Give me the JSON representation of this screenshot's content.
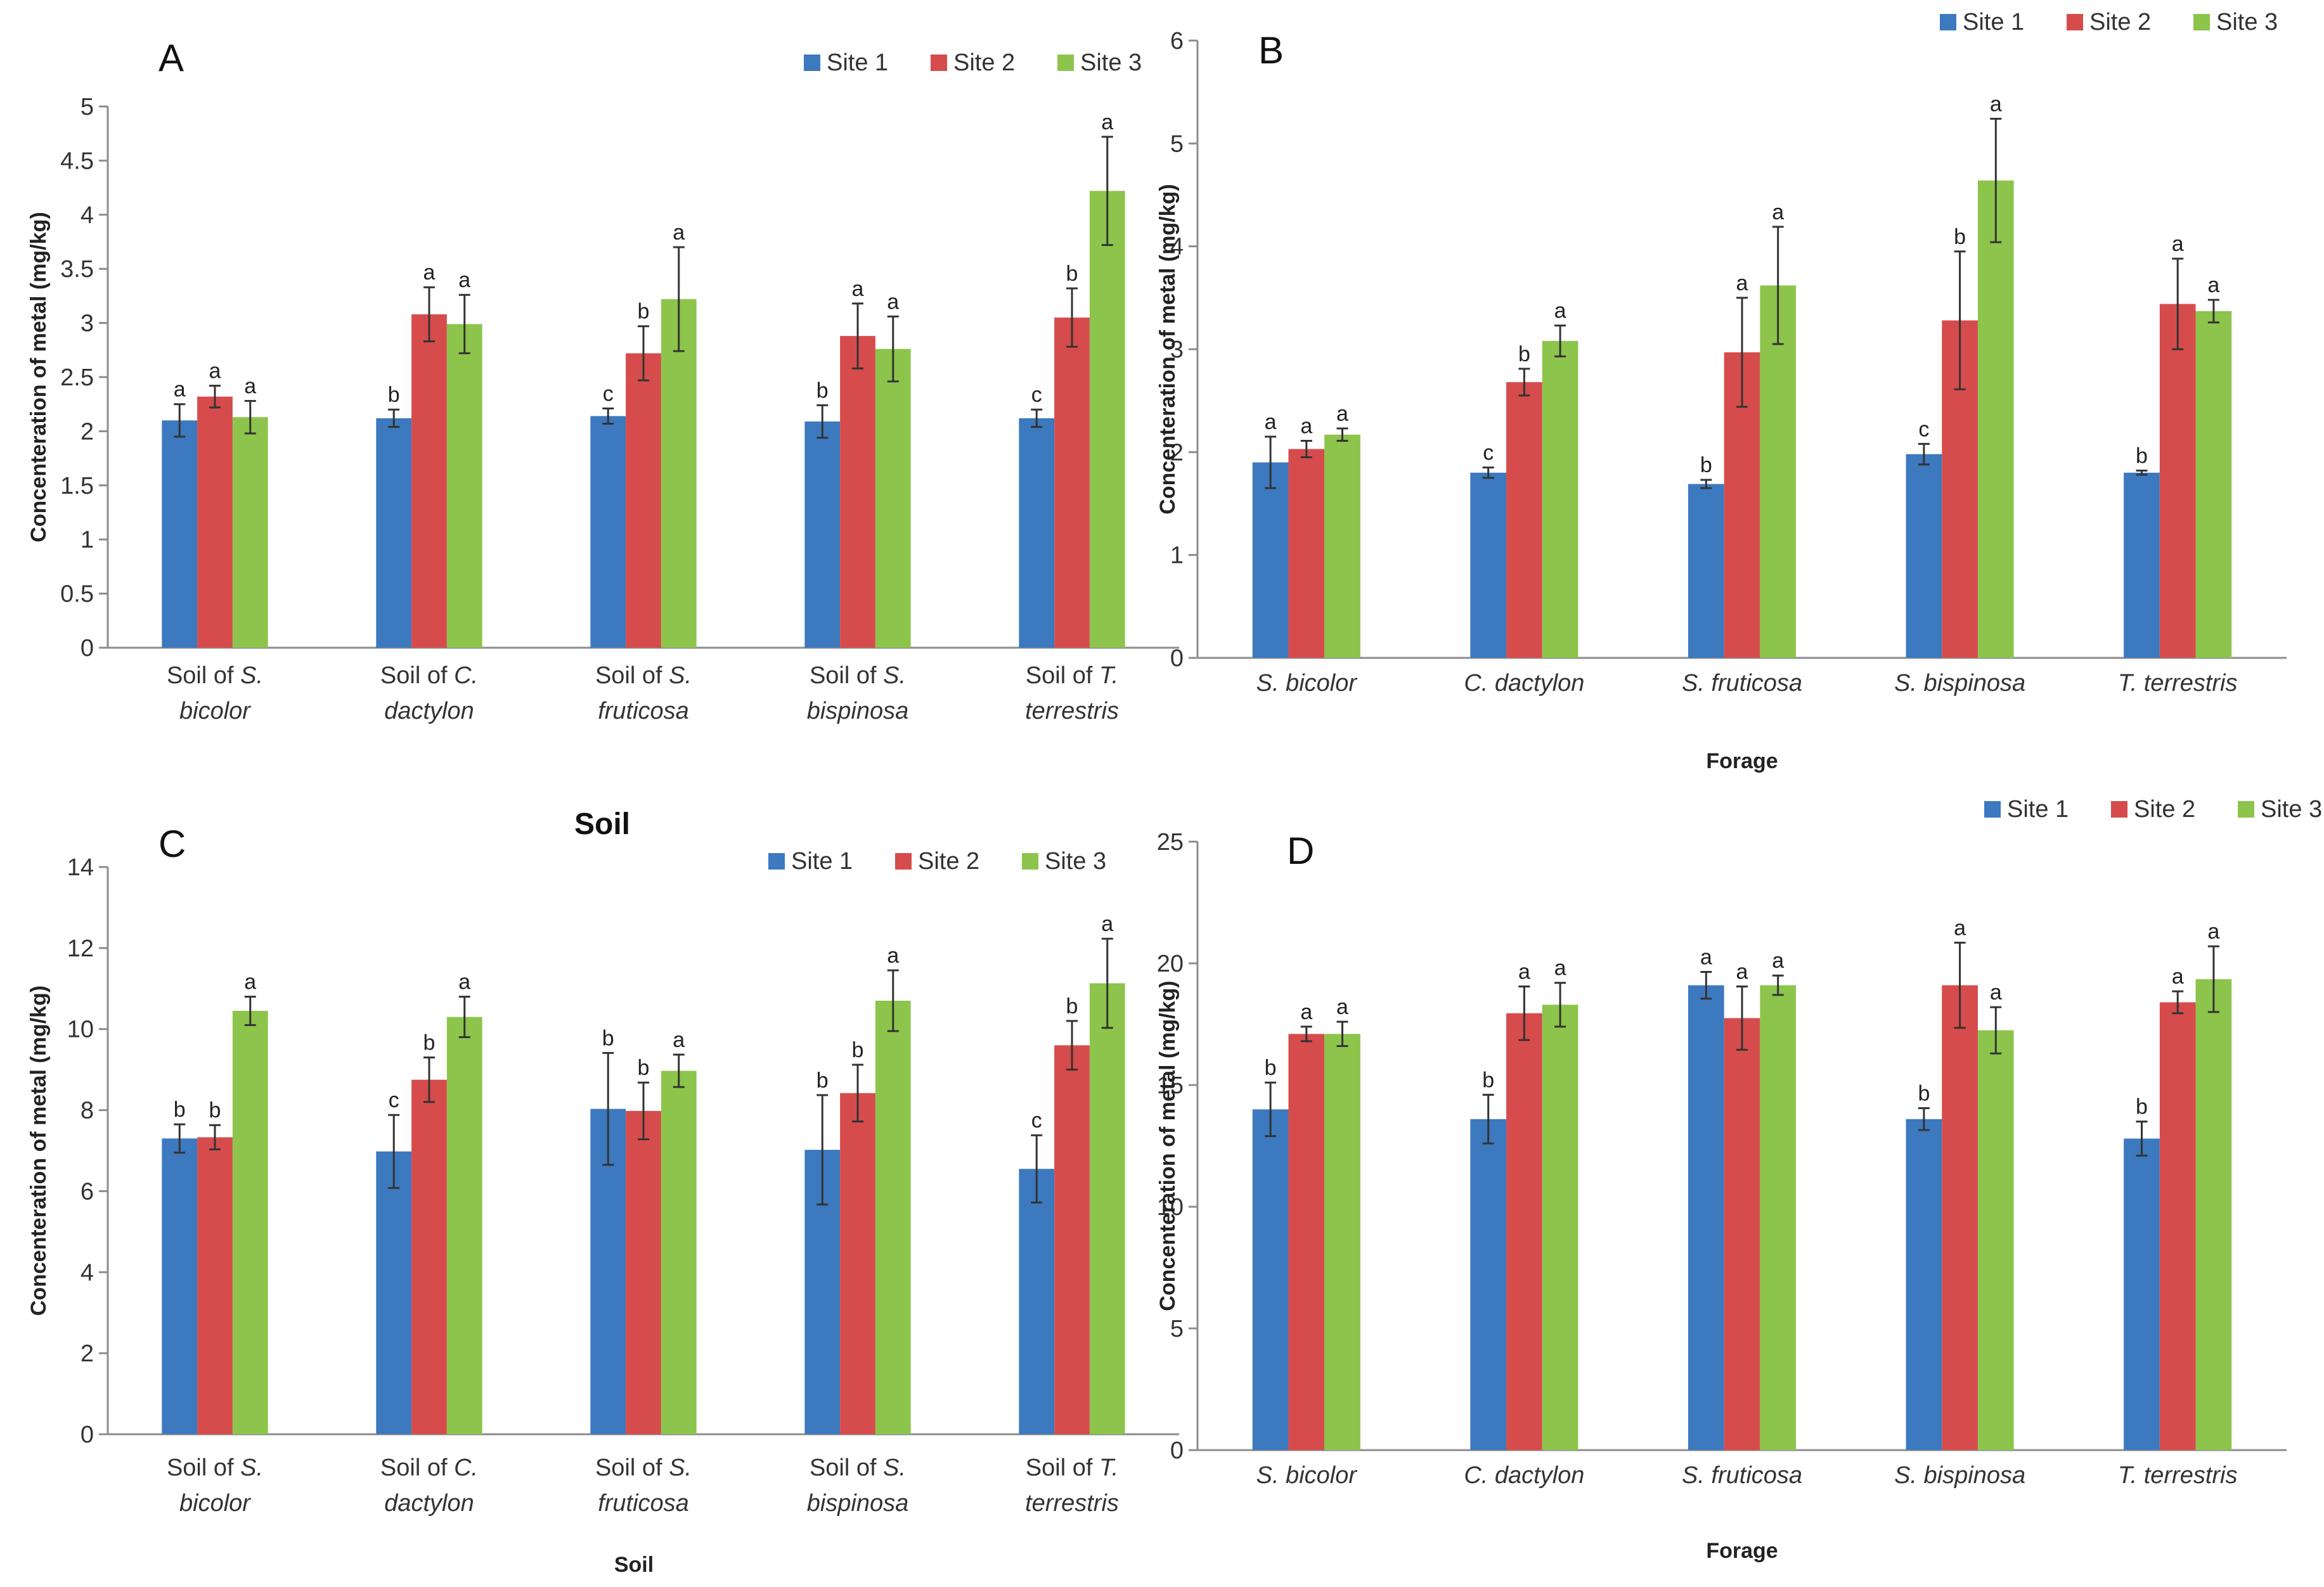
{
  "figure": "Concentration of metal in soil and forage at three sites",
  "colors": {
    "Site 1": "#3C79BE",
    "Site 2": "#D64C4C",
    "Site 3": "#8DC44B",
    "axis": "#8c8c8c",
    "error": "#333333"
  },
  "chart_data": [
    {
      "panel": "A",
      "type": "bar",
      "title": "",
      "ylabel": "Concenteration of metal (mg/kg)",
      "xlabel": "",
      "ylim": [
        0,
        5
      ],
      "yticks": [
        "0",
        "0.5",
        "1",
        "1.5",
        "2",
        "2.5",
        "3",
        "3.5",
        "4",
        "4.5",
        "5"
      ],
      "categories": [
        [
          "Soil of ",
          "S.",
          "bicolor"
        ],
        [
          "Soil of ",
          "C.",
          "dactylon"
        ],
        [
          "Soil of ",
          "S.",
          "fruticosa"
        ],
        [
          "Soil of ",
          "S.",
          "bispinosa"
        ],
        [
          "Soil of ",
          "T.",
          "terrestris"
        ]
      ],
      "legend": [
        "Site 1",
        "Site 2",
        "Site 3"
      ],
      "series": [
        {
          "name": "Site 1",
          "values": [
            2.1,
            2.12,
            2.14,
            2.09,
            2.12
          ],
          "errors": [
            0.15,
            0.08,
            0.07,
            0.15,
            0.08
          ],
          "labels": [
            "a",
            "b",
            "c",
            "b",
            "c"
          ]
        },
        {
          "name": "Site 2",
          "values": [
            2.32,
            3.08,
            2.72,
            2.88,
            3.05
          ],
          "errors": [
            0.1,
            0.25,
            0.25,
            0.3,
            0.27
          ],
          "labels": [
            "a",
            "a",
            "b",
            "a",
            "b"
          ]
        },
        {
          "name": "Site 3",
          "values": [
            2.13,
            2.99,
            3.22,
            2.76,
            4.22
          ],
          "errors": [
            0.15,
            0.27,
            0.48,
            0.3,
            0.5
          ],
          "labels": [
            "a",
            "a",
            "a",
            "a",
            "a"
          ]
        }
      ]
    },
    {
      "panel": "B",
      "type": "bar",
      "title": "",
      "ylabel": "Concenteration of metal (mg/kg)",
      "xlabel": "Forage",
      "ylim": [
        0,
        6
      ],
      "yticks": [
        "0",
        "1",
        "2",
        "3",
        "4",
        "5",
        "6"
      ],
      "categories": [
        [
          "S. bicolor"
        ],
        [
          "C. dactylon"
        ],
        [
          "S. fruticosa"
        ],
        [
          "S. bispinosa"
        ],
        [
          "T. terrestris"
        ]
      ],
      "legend": [
        "Site 1",
        "Site 2",
        "Site 3"
      ],
      "series": [
        {
          "name": "Site 1",
          "values": [
            1.9,
            1.8,
            1.69,
            1.98,
            1.8
          ],
          "errors": [
            0.25,
            0.05,
            0.04,
            0.1,
            0.02
          ],
          "labels": [
            "a",
            "c",
            "b",
            "c",
            "b"
          ]
        },
        {
          "name": "Site 2",
          "values": [
            2.03,
            2.68,
            2.97,
            3.28,
            3.44
          ],
          "errors": [
            0.08,
            0.13,
            0.53,
            0.67,
            0.44
          ],
          "labels": [
            "a",
            "b",
            "a",
            "b",
            "a"
          ]
        },
        {
          "name": "Site 3",
          "values": [
            2.17,
            3.08,
            3.62,
            4.64,
            3.37
          ],
          "errors": [
            0.06,
            0.15,
            0.57,
            0.6,
            0.11
          ],
          "labels": [
            "a",
            "a",
            "a",
            "a",
            "a"
          ]
        }
      ]
    },
    {
      "panel": "C",
      "type": "bar",
      "title": "Soil",
      "ylabel": "Concenteration of metal (mg/kg)",
      "xlabel": "Soil",
      "ylim": [
        0,
        14
      ],
      "yticks": [
        "0",
        "2",
        "4",
        "6",
        "8",
        "10",
        "12",
        "14"
      ],
      "categories": [
        [
          "Soil of ",
          "S.",
          "bicolor"
        ],
        [
          "Soil of ",
          "C.",
          "dactylon"
        ],
        [
          "Soil of ",
          "S.",
          "fruticosa"
        ],
        [
          "Soil of ",
          "S.",
          "bispinosa"
        ],
        [
          "Soil of ",
          "T.",
          "terrestris"
        ]
      ],
      "legend": [
        "Site 1",
        "Site 2",
        "Site 3"
      ],
      "series": [
        {
          "name": "Site 1",
          "values": [
            7.3,
            6.98,
            8.03,
            7.02,
            6.55
          ],
          "errors": [
            0.35,
            0.9,
            1.38,
            1.35,
            0.83
          ],
          "labels": [
            "b",
            "c",
            "b",
            "b",
            "c"
          ]
        },
        {
          "name": "Site 2",
          "values": [
            7.33,
            8.75,
            7.98,
            8.42,
            9.6
          ],
          "errors": [
            0.3,
            0.55,
            0.7,
            0.7,
            0.6
          ],
          "labels": [
            "b",
            "b",
            "b",
            "b",
            "b"
          ]
        },
        {
          "name": "Site 3",
          "values": [
            10.45,
            10.3,
            8.97,
            10.7,
            11.13
          ],
          "errors": [
            0.35,
            0.5,
            0.4,
            0.75,
            1.1
          ],
          "labels": [
            "a",
            "a",
            "a",
            "a",
            "a"
          ]
        }
      ]
    },
    {
      "panel": "D",
      "type": "bar",
      "title": "",
      "ylabel": "Concenteration of metal (mg/kg)",
      "xlabel": "Forage",
      "ylim": [
        0,
        25
      ],
      "yticks": [
        "0",
        "5",
        "10",
        "15",
        "20",
        "25"
      ],
      "categories": [
        [
          "S. bicolor"
        ],
        [
          "C. dactylon"
        ],
        [
          "S. fruticosa"
        ],
        [
          "S. bispinosa"
        ],
        [
          "T. terrestris"
        ]
      ],
      "legend": [
        "Site 1",
        "Site 2",
        "Site 3"
      ],
      "series": [
        {
          "name": "Site 1",
          "values": [
            14.0,
            13.6,
            19.1,
            13.6,
            12.8
          ],
          "errors": [
            1.1,
            1.0,
            0.55,
            0.45,
            0.7
          ],
          "labels": [
            "b",
            "b",
            "a",
            "b",
            "b"
          ]
        },
        {
          "name": "Site 2",
          "values": [
            17.1,
            17.95,
            17.75,
            19.1,
            18.4
          ],
          "errors": [
            0.3,
            1.1,
            1.3,
            1.75,
            0.45
          ],
          "labels": [
            "a",
            "a",
            "a",
            "a",
            "a"
          ]
        },
        {
          "name": "Site 3",
          "values": [
            17.1,
            18.3,
            19.1,
            17.25,
            19.35
          ],
          "errors": [
            0.5,
            0.9,
            0.4,
            0.95,
            1.35
          ],
          "labels": [
            "a",
            "a",
            "a",
            "a",
            "a"
          ]
        }
      ]
    }
  ]
}
